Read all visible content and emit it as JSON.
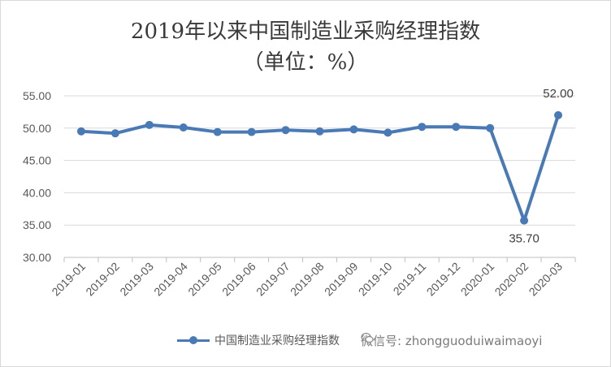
{
  "chart_data": {
    "type": "line",
    "title": "2019年以来中国制造业采购经理指数",
    "subtitle": "（单位：%）",
    "categories": [
      "2019-01",
      "2019-02",
      "2019-03",
      "2019-04",
      "2019-05",
      "2019-06",
      "2019-07",
      "2019-08",
      "2019-09",
      "2019-10",
      "2019-11",
      "2019-12",
      "2020-01",
      "2020-02",
      "2020-03"
    ],
    "series": [
      {
        "name": "中国制造业采购经理指数",
        "values": [
          49.5,
          49.2,
          50.5,
          50.1,
          49.4,
          49.4,
          49.7,
          49.5,
          49.8,
          49.3,
          50.2,
          50.2,
          50.0,
          35.7,
          52.0
        ]
      }
    ],
    "ylim": [
      30,
      55
    ],
    "yticks": [
      "30.00",
      "35.00",
      "40.00",
      "45.00",
      "50.00",
      "55.00"
    ],
    "data_labels": [
      {
        "category": "2020-02",
        "text": "35.70"
      },
      {
        "category": "2020-03",
        "text": "52.00"
      }
    ],
    "grid": true,
    "legend": "bottom",
    "colors": {
      "line": "#4a7ab5",
      "grid": "#d9d9d9"
    }
  },
  "watermark": "微信号: zhongguoduiwaimaoyi"
}
